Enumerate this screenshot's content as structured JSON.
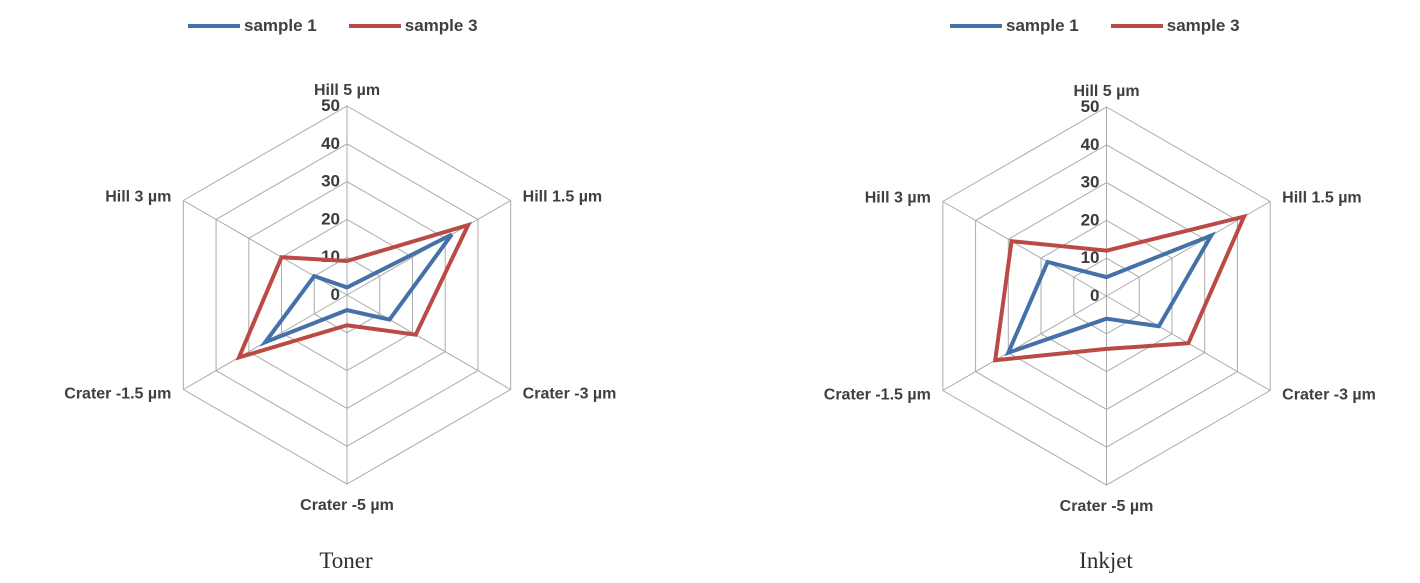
{
  "page": {
    "background": "#ffffff"
  },
  "colors": {
    "sample1": "#4472a8",
    "sample3": "#bb4a45",
    "grid": "#ababab",
    "axis_label": "#404040",
    "tick_label": "#3b3b3b",
    "caption": "#2e2e2e"
  },
  "chart_data": [
    {
      "type": "radar",
      "caption": "Toner",
      "legend_position": "top",
      "grid": true,
      "categories": [
        "Hill 5 µm",
        "Hill 1.5 µm",
        "Crater -3 µm",
        "Crater -5 µm",
        "Crater -1.5 µm",
        "Hill 3 µm"
      ],
      "radial_axis": {
        "min": 0,
        "max": 50,
        "ticks": [
          0,
          10,
          20,
          30,
          40,
          50
        ]
      },
      "series": [
        {
          "name": "sample 1",
          "color": "#4472a8",
          "values": [
            2,
            32,
            13,
            4,
            25,
            10
          ]
        },
        {
          "name": "sample 3",
          "color": "#bb4a45",
          "values": [
            9,
            37,
            21,
            8,
            33,
            20
          ]
        }
      ]
    },
    {
      "type": "radar",
      "caption": "Inkjet",
      "legend_position": "top",
      "grid": true,
      "categories": [
        "Hill 5 µm",
        "Hill 1.5 µm",
        "Crater -3 µm",
        "Crater -5 µm",
        "Crater -1.5 µm",
        "Hill 3 µm"
      ],
      "radial_axis": {
        "min": 0,
        "max": 50,
        "ticks": [
          0,
          10,
          20,
          30,
          40,
          50
        ]
      },
      "series": [
        {
          "name": "sample 1",
          "color": "#4472a8",
          "values": [
            5,
            32,
            16,
            6,
            30,
            18
          ]
        },
        {
          "name": "sample 3",
          "color": "#bb4a45",
          "values": [
            12,
            42,
            25,
            14,
            34,
            29
          ]
        }
      ]
    }
  ]
}
